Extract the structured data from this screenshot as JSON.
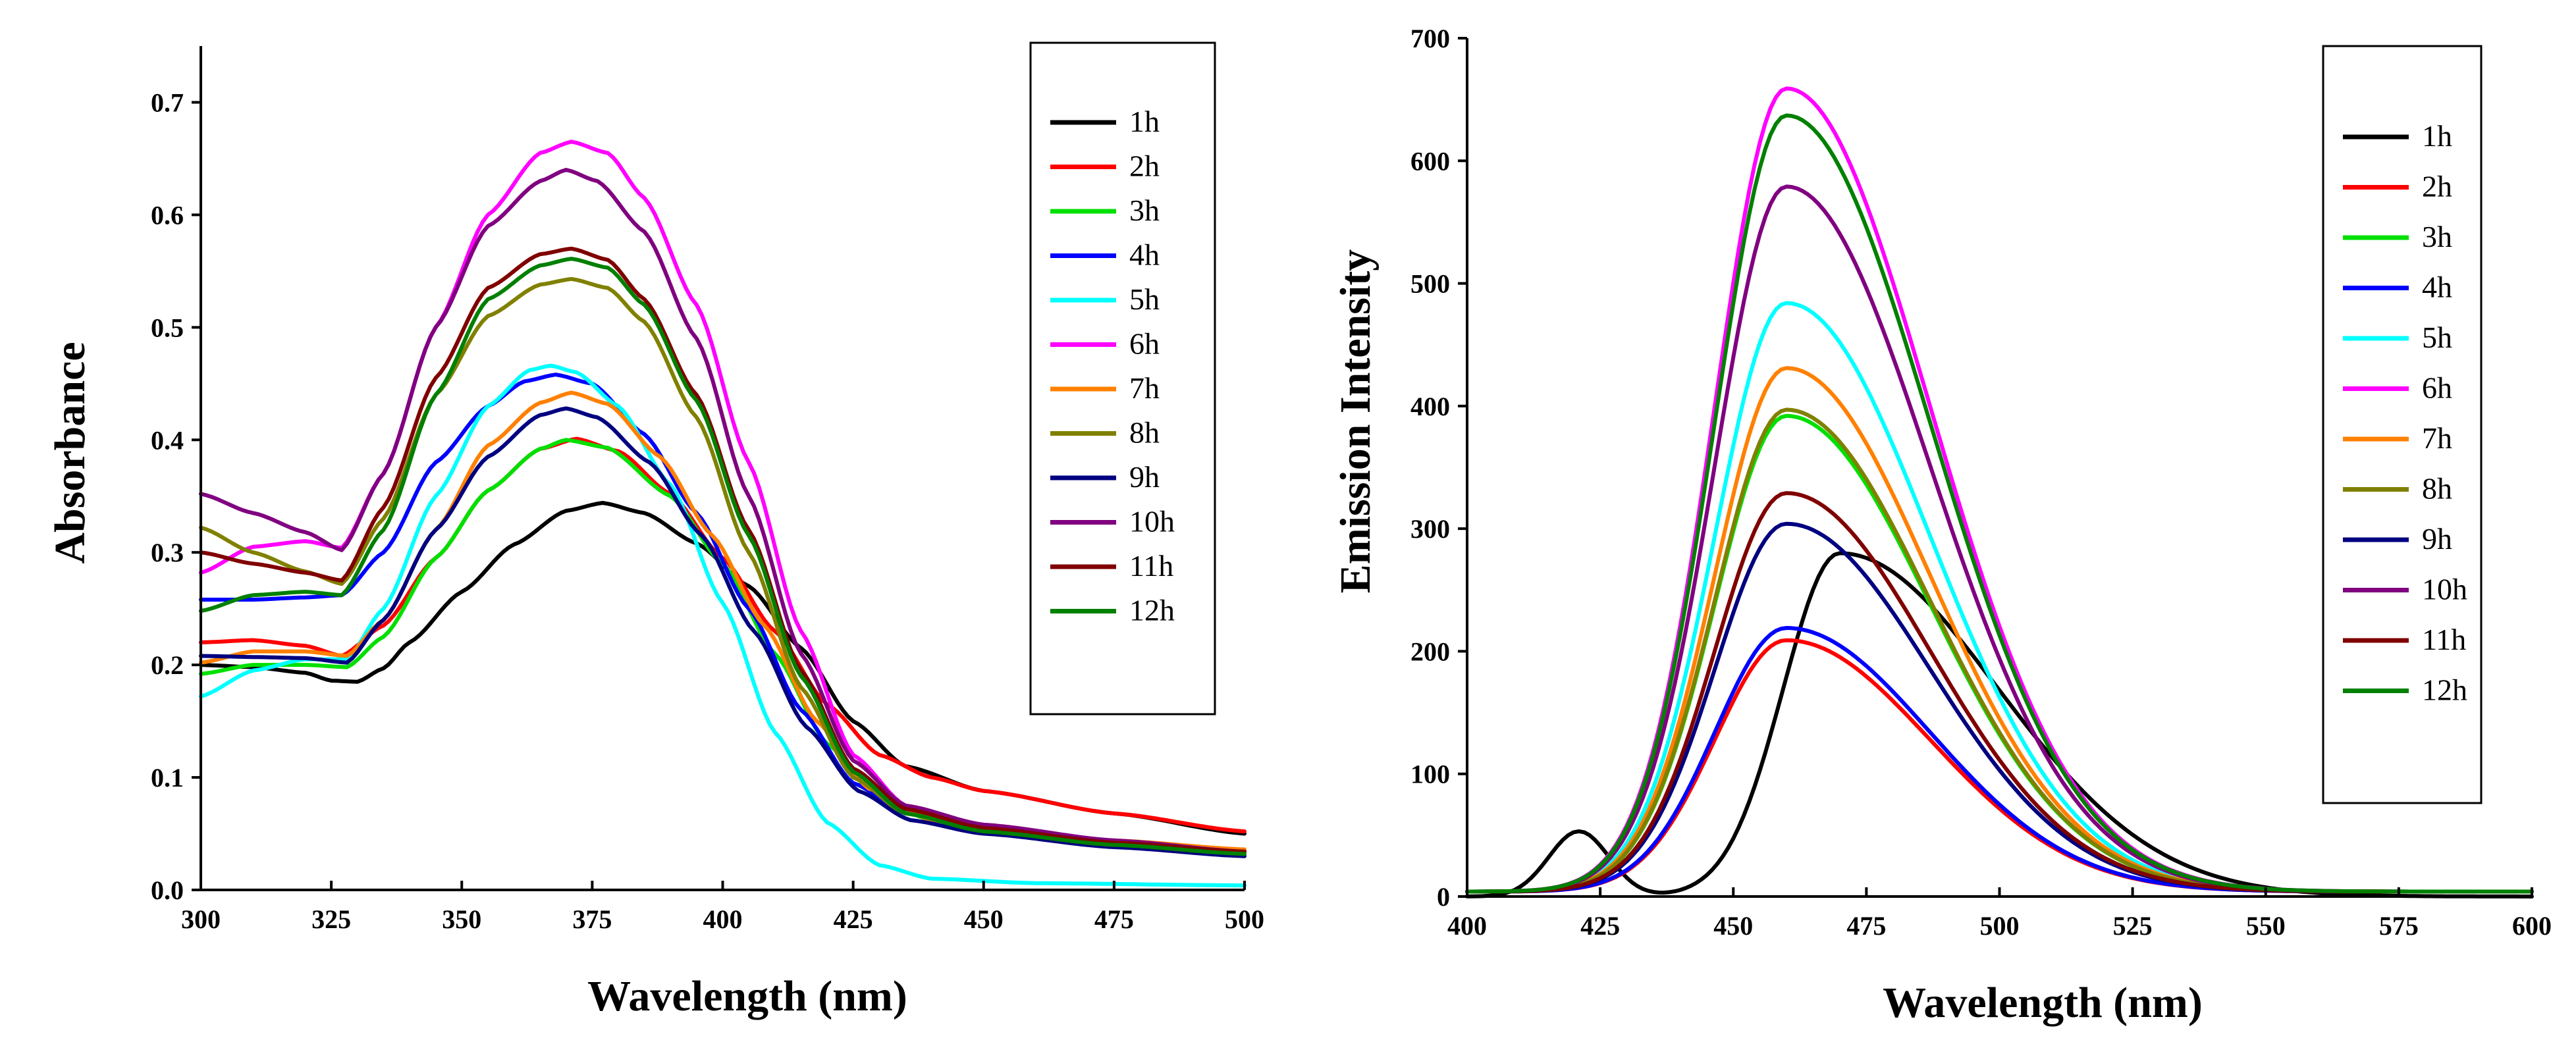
{
  "chart_data": [
    {
      "type": "line",
      "xlabel": "Wavelength (nm)",
      "ylabel": "Absorbance",
      "xlim": [
        300,
        500
      ],
      "ylim": [
        0.0,
        0.75
      ],
      "xticks": [
        300,
        325,
        350,
        375,
        400,
        425,
        450,
        475,
        500
      ],
      "yticks": [
        0.0,
        0.1,
        0.2,
        0.3,
        0.4,
        0.5,
        0.6,
        0.7
      ],
      "ytick_labels": [
        "0.0",
        "0.1",
        "0.2",
        "0.3",
        "0.4",
        "0.5",
        "0.6",
        "0.7"
      ],
      "legend_position": "top-right",
      "series": [
        {
          "name": "1h",
          "color": "#000000",
          "points": [
            [
              300,
              0.2
            ],
            [
              310,
              0.198
            ],
            [
              320,
              0.193
            ],
            [
              325,
              0.186
            ],
            [
              330,
              0.185
            ],
            [
              335,
              0.197
            ],
            [
              340,
              0.22
            ],
            [
              350,
              0.265
            ],
            [
              360,
              0.307
            ],
            [
              370,
              0.337
            ],
            [
              377,
              0.344
            ],
            [
              385,
              0.335
            ],
            [
              395,
              0.308
            ],
            [
              405,
              0.27
            ],
            [
              415,
              0.215
            ],
            [
              425,
              0.15
            ],
            [
              435,
              0.11
            ],
            [
              450,
              0.088
            ],
            [
              475,
              0.068
            ],
            [
              500,
              0.05
            ]
          ]
        },
        {
          "name": "2h",
          "color": "#ff0000",
          "points": [
            [
              300,
              0.22
            ],
            [
              310,
              0.222
            ],
            [
              320,
              0.217
            ],
            [
              327,
              0.208
            ],
            [
              335,
              0.235
            ],
            [
              345,
              0.295
            ],
            [
              355,
              0.355
            ],
            [
              365,
              0.392
            ],
            [
              372,
              0.401
            ],
            [
              380,
              0.39
            ],
            [
              390,
              0.352
            ],
            [
              400,
              0.295
            ],
            [
              410,
              0.23
            ],
            [
              420,
              0.165
            ],
            [
              430,
              0.12
            ],
            [
              440,
              0.1
            ],
            [
              450,
              0.088
            ],
            [
              475,
              0.068
            ],
            [
              500,
              0.052
            ]
          ]
        },
        {
          "name": "3h",
          "color": "#00e000",
          "points": [
            [
              300,
              0.192
            ],
            [
              310,
              0.2
            ],
            [
              320,
              0.2
            ],
            [
              328,
              0.198
            ],
            [
              335,
              0.225
            ],
            [
              345,
              0.295
            ],
            [
              355,
              0.355
            ],
            [
              365,
              0.392
            ],
            [
              370,
              0.4
            ],
            [
              378,
              0.393
            ],
            [
              390,
              0.35
            ],
            [
              400,
              0.29
            ],
            [
              410,
              0.21
            ],
            [
              420,
              0.13
            ],
            [
              430,
              0.08
            ],
            [
              440,
              0.062
            ],
            [
              450,
              0.055
            ],
            [
              475,
              0.042
            ],
            [
              500,
              0.035
            ]
          ]
        },
        {
          "name": "4h",
          "color": "#0000ff",
          "points": [
            [
              300,
              0.258
            ],
            [
              310,
              0.258
            ],
            [
              320,
              0.26
            ],
            [
              327,
              0.262
            ],
            [
              335,
              0.3
            ],
            [
              345,
              0.38
            ],
            [
              355,
              0.43
            ],
            [
              362,
              0.452
            ],
            [
              368,
              0.458
            ],
            [
              375,
              0.45
            ],
            [
              385,
              0.405
            ],
            [
              395,
              0.335
            ],
            [
              405,
              0.25
            ],
            [
              415,
              0.16
            ],
            [
              425,
              0.095
            ],
            [
              435,
              0.068
            ],
            [
              450,
              0.055
            ],
            [
              475,
              0.042
            ],
            [
              500,
              0.034
            ]
          ]
        },
        {
          "name": "5h",
          "color": "#00ffff",
          "points": [
            [
              300,
              0.172
            ],
            [
              310,
              0.195
            ],
            [
              320,
              0.205
            ],
            [
              328,
              0.205
            ],
            [
              335,
              0.25
            ],
            [
              345,
              0.35
            ],
            [
              355,
              0.43
            ],
            [
              363,
              0.462
            ],
            [
              367,
              0.466
            ],
            [
              372,
              0.46
            ],
            [
              380,
              0.43
            ],
            [
              390,
              0.36
            ],
            [
              400,
              0.255
            ],
            [
              410,
              0.14
            ],
            [
              420,
              0.06
            ],
            [
              430,
              0.022
            ],
            [
              440,
              0.01
            ],
            [
              460,
              0.006
            ],
            [
              500,
              0.004
            ]
          ]
        },
        {
          "name": "6h",
          "color": "#ff00ff",
          "points": [
            [
              300,
              0.282
            ],
            [
              310,
              0.305
            ],
            [
              320,
              0.31
            ],
            [
              327,
              0.304
            ],
            [
              335,
              0.37
            ],
            [
              345,
              0.5
            ],
            [
              355,
              0.6
            ],
            [
              365,
              0.655
            ],
            [
              371,
              0.665
            ],
            [
              378,
              0.655
            ],
            [
              385,
              0.615
            ],
            [
              395,
              0.52
            ],
            [
              405,
              0.38
            ],
            [
              415,
              0.23
            ],
            [
              425,
              0.12
            ],
            [
              435,
              0.075
            ],
            [
              450,
              0.055
            ],
            [
              475,
              0.04
            ],
            [
              500,
              0.032
            ]
          ]
        },
        {
          "name": "7h",
          "color": "#ff8000",
          "points": [
            [
              300,
              0.202
            ],
            [
              310,
              0.212
            ],
            [
              320,
              0.212
            ],
            [
              328,
              0.208
            ],
            [
              335,
              0.24
            ],
            [
              345,
              0.32
            ],
            [
              355,
              0.395
            ],
            [
              365,
              0.433
            ],
            [
              371,
              0.442
            ],
            [
              378,
              0.432
            ],
            [
              388,
              0.385
            ],
            [
              398,
              0.315
            ],
            [
              408,
              0.235
            ],
            [
              418,
              0.15
            ],
            [
              428,
              0.09
            ],
            [
              440,
              0.062
            ],
            [
              450,
              0.055
            ],
            [
              475,
              0.044
            ],
            [
              500,
              0.036
            ]
          ]
        },
        {
          "name": "8h",
          "color": "#808000",
          "points": [
            [
              300,
              0.322
            ],
            [
              310,
              0.3
            ],
            [
              320,
              0.283
            ],
            [
              327,
              0.272
            ],
            [
              335,
              0.33
            ],
            [
              345,
              0.44
            ],
            [
              355,
              0.51
            ],
            [
              365,
              0.538
            ],
            [
              371,
              0.543
            ],
            [
              378,
              0.535
            ],
            [
              385,
              0.505
            ],
            [
              395,
              0.42
            ],
            [
              405,
              0.3
            ],
            [
              415,
              0.18
            ],
            [
              425,
              0.1
            ],
            [
              435,
              0.068
            ],
            [
              450,
              0.055
            ],
            [
              475,
              0.042
            ],
            [
              500,
              0.034
            ]
          ]
        },
        {
          "name": "9h",
          "color": "#000080",
          "points": [
            [
              300,
              0.208
            ],
            [
              310,
              0.207
            ],
            [
              320,
              0.206
            ],
            [
              328,
              0.202
            ],
            [
              335,
              0.24
            ],
            [
              345,
              0.32
            ],
            [
              355,
              0.385
            ],
            [
              365,
              0.422
            ],
            [
              370,
              0.428
            ],
            [
              376,
              0.42
            ],
            [
              386,
              0.38
            ],
            [
              396,
              0.315
            ],
            [
              406,
              0.23
            ],
            [
              416,
              0.145
            ],
            [
              426,
              0.088
            ],
            [
              436,
              0.062
            ],
            [
              450,
              0.05
            ],
            [
              475,
              0.038
            ],
            [
              500,
              0.03
            ]
          ]
        },
        {
          "name": "10h",
          "color": "#800080",
          "points": [
            [
              300,
              0.352
            ],
            [
              310,
              0.335
            ],
            [
              320,
              0.318
            ],
            [
              327,
              0.302
            ],
            [
              335,
              0.37
            ],
            [
              345,
              0.5
            ],
            [
              355,
              0.59
            ],
            [
              365,
              0.63
            ],
            [
              370,
              0.64
            ],
            [
              376,
              0.63
            ],
            [
              385,
              0.585
            ],
            [
              395,
              0.49
            ],
            [
              405,
              0.35
            ],
            [
              415,
              0.21
            ],
            [
              425,
              0.115
            ],
            [
              435,
              0.075
            ],
            [
              450,
              0.058
            ],
            [
              475,
              0.044
            ],
            [
              500,
              0.034
            ]
          ]
        },
        {
          "name": "11h",
          "color": "#800000",
          "points": [
            [
              300,
              0.3
            ],
            [
              310,
              0.29
            ],
            [
              320,
              0.282
            ],
            [
              327,
              0.275
            ],
            [
              335,
              0.34
            ],
            [
              345,
              0.455
            ],
            [
              355,
              0.535
            ],
            [
              365,
              0.565
            ],
            [
              371,
              0.57
            ],
            [
              378,
              0.56
            ],
            [
              385,
              0.525
            ],
            [
              395,
              0.44
            ],
            [
              405,
              0.32
            ],
            [
              415,
              0.195
            ],
            [
              425,
              0.108
            ],
            [
              435,
              0.072
            ],
            [
              450,
              0.055
            ],
            [
              475,
              0.042
            ],
            [
              500,
              0.034
            ]
          ]
        },
        {
          "name": "12h",
          "color": "#008000",
          "points": [
            [
              300,
              0.248
            ],
            [
              310,
              0.262
            ],
            [
              320,
              0.265
            ],
            [
              327,
              0.262
            ],
            [
              335,
              0.32
            ],
            [
              345,
              0.44
            ],
            [
              355,
              0.525
            ],
            [
              365,
              0.555
            ],
            [
              371,
              0.561
            ],
            [
              378,
              0.553
            ],
            [
              385,
              0.52
            ],
            [
              395,
              0.435
            ],
            [
              405,
              0.315
            ],
            [
              415,
              0.19
            ],
            [
              425,
              0.105
            ],
            [
              435,
              0.068
            ],
            [
              450,
              0.052
            ],
            [
              475,
              0.04
            ],
            [
              500,
              0.032
            ]
          ]
        }
      ]
    },
    {
      "type": "line",
      "xlabel": "Wavelength (nm)",
      "ylabel": "Emission Intensity",
      "xlim": [
        400,
        600
      ],
      "ylim": [
        0,
        700
      ],
      "xticks": [
        400,
        425,
        450,
        475,
        500,
        525,
        550,
        575,
        600
      ],
      "yticks": [
        0,
        100,
        200,
        300,
        400,
        500,
        600,
        700
      ],
      "ytick_labels": [
        "0",
        "100",
        "200",
        "300",
        "400",
        "500",
        "600",
        "700"
      ],
      "legend_position": "top-right",
      "series": [
        {
          "name": "1h",
          "color": "#000000",
          "peak_x": 470,
          "peak_y": 280,
          "shoulder": true
        },
        {
          "name": "2h",
          "color": "#ff0000",
          "peak_x": 460,
          "peak_y": 205
        },
        {
          "name": "3h",
          "color": "#00e000",
          "peak_x": 460,
          "peak_y": 388
        },
        {
          "name": "4h",
          "color": "#0000ff",
          "peak_x": 460,
          "peak_y": 215
        },
        {
          "name": "5h",
          "color": "#00ffff",
          "peak_x": 460,
          "peak_y": 480
        },
        {
          "name": "6h",
          "color": "#ff00ff",
          "peak_x": 460,
          "peak_y": 655
        },
        {
          "name": "7h",
          "color": "#ff8000",
          "peak_x": 460,
          "peak_y": 427
        },
        {
          "name": "8h",
          "color": "#808000",
          "peak_x": 460,
          "peak_y": 393
        },
        {
          "name": "9h",
          "color": "#000080",
          "peak_x": 460,
          "peak_y": 300
        },
        {
          "name": "10h",
          "color": "#800080",
          "peak_x": 460,
          "peak_y": 575
        },
        {
          "name": "11h",
          "color": "#800000",
          "peak_x": 460,
          "peak_y": 325
        },
        {
          "name": "12h",
          "color": "#008000",
          "peak_x": 460,
          "peak_y": 633
        }
      ]
    }
  ]
}
